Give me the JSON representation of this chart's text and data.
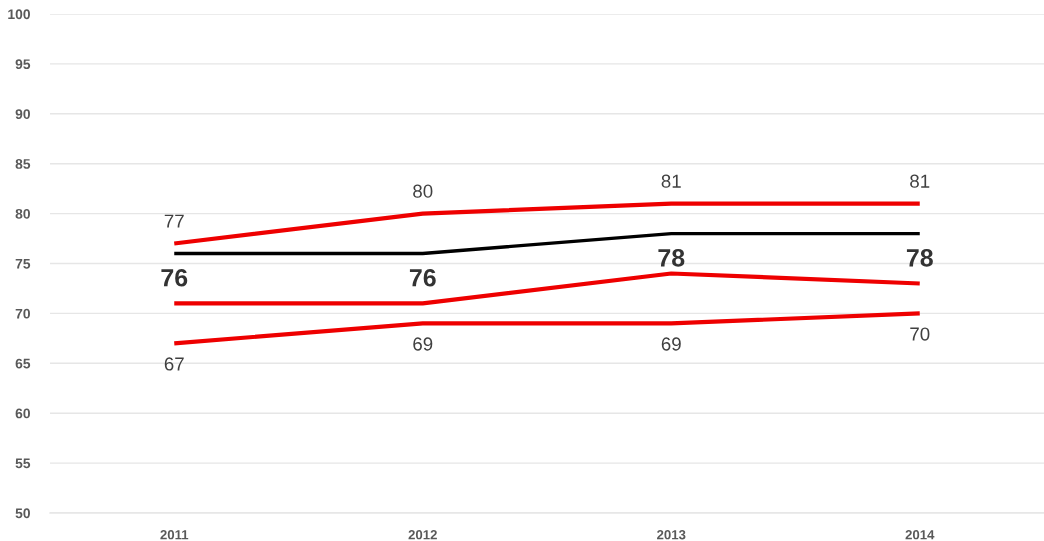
{
  "chart_data": {
    "type": "line",
    "categories": [
      "2011",
      "2012",
      "2013",
      "2014"
    ],
    "series": [
      {
        "color": "#ee0000",
        "values": [
          77,
          80,
          81,
          81
        ],
        "value_labels": [
          "77",
          "80",
          "81",
          "81"
        ]
      },
      {
        "color": "#000000",
        "values": [
          76,
          76,
          78,
          78
        ],
        "value_labels": [
          "76",
          "76",
          "78",
          "78"
        ]
      },
      {
        "color": "#ee0000",
        "values": [
          71,
          71,
          74,
          73
        ]
      },
      {
        "color": "#ee0000",
        "values": [
          67,
          69,
          69,
          70
        ],
        "value_labels": [
          "67",
          "69",
          "69",
          "70"
        ]
      }
    ],
    "ylim": [
      50,
      100
    ],
    "yticks": [
      50,
      55,
      60,
      65,
      70,
      75,
      80,
      85,
      90,
      95,
      100
    ],
    "grid": "y"
  }
}
